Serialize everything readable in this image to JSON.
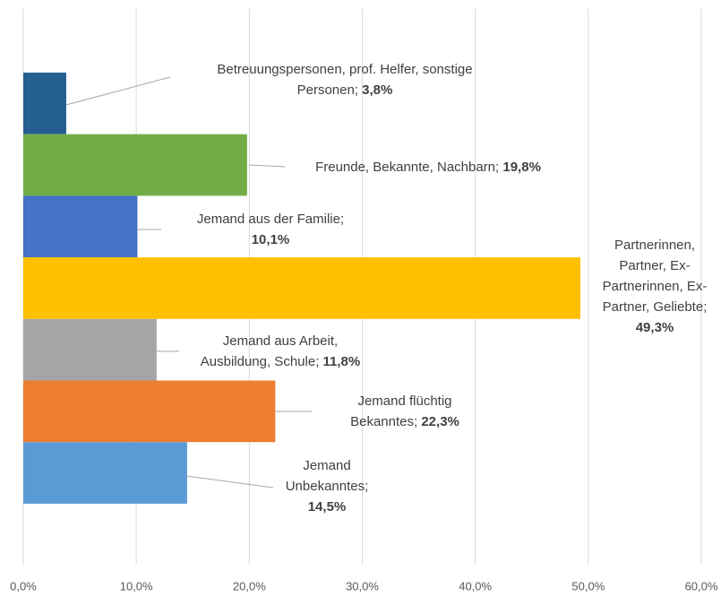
{
  "chart_data": {
    "type": "bar",
    "orientation": "horizontal",
    "categories": [
      "Betreuungspersonen, prof. Helfer, sonstige Personen",
      "Freunde, Bekannte, Nachbarn",
      "Jemand aus der Familie",
      "Partnerinnen, Partner, Ex-Partnerinnen, Ex-Partner, Geliebte",
      "Jemand aus Arbeit, Ausbildung, Schule",
      "Jemand flüchtig Bekanntes",
      "Jemand Unbekanntes"
    ],
    "values": [
      3.8,
      19.8,
      10.1,
      49.3,
      11.8,
      22.3,
      14.5
    ],
    "value_labels": [
      "3,8%",
      "19,8%",
      "10,1%",
      "49,3%",
      "11,8%",
      "22,3%",
      "14,5%"
    ],
    "label_separator": "; ",
    "colors": [
      "#255e91",
      "#70ad47",
      "#4472c4",
      "#ffc000",
      "#a5a5a5",
      "#ed7d31",
      "#5b9bd5"
    ],
    "xlim": [
      0,
      60
    ],
    "xticks": [
      {
        "value": 0,
        "label": "0,0%"
      },
      {
        "value": 10,
        "label": "10,0%"
      },
      {
        "value": 20,
        "label": "20,0%"
      },
      {
        "value": 30,
        "label": "30,0%"
      },
      {
        "value": 40,
        "label": "40,0%"
      },
      {
        "value": 50,
        "label": "50,0%"
      },
      {
        "value": 60,
        "label": "60,0%"
      }
    ],
    "grid": true
  }
}
